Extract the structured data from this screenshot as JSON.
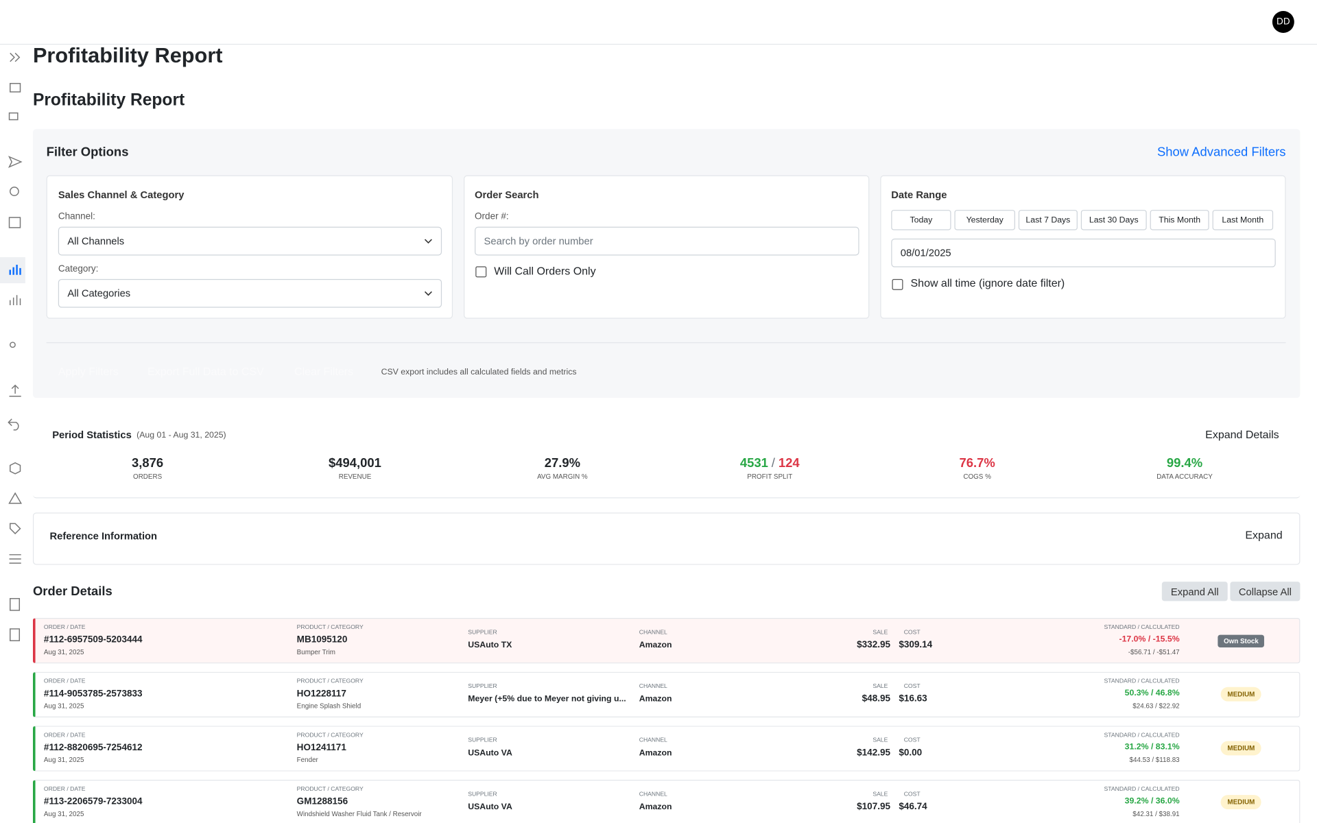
{
  "header": {
    "avatar": "DD"
  },
  "page_title": "Profitability Report",
  "section_title": "Profitability Report",
  "filters": {
    "title": "Filter Options",
    "advanced_link": "Show Advanced Filters",
    "sales_channel": {
      "title": "Sales Channel & Category",
      "channel_label": "Channel:",
      "channel_value": "All Channels",
      "category_label": "Category:",
      "category_value": "All Categories"
    },
    "order_search": {
      "title": "Order Search",
      "order_label": "Order #:",
      "placeholder": "Search by order number",
      "will_call": "Will Call Orders Only"
    },
    "date_range": {
      "title": "Date Range",
      "presets": [
        "Today",
        "Yesterday",
        "Last 7 Days",
        "Last 30 Days",
        "This Month",
        "Last Month"
      ],
      "date_value": "08/01/2025",
      "show_all": "Show all time (ignore date filter)"
    },
    "actions": {
      "buttons": [
        "Apply Filters",
        "Export Full Data to CSV",
        "Clear Filters"
      ],
      "note": "CSV export includes all calculated fields and metrics"
    }
  },
  "period_stats": {
    "title": "Period Statistics",
    "range": "(Aug 01 - Aug 31, 2025)",
    "expand": "Expand Details",
    "stats": [
      {
        "value": "3,876",
        "label": "ORDERS",
        "color": "#212529"
      },
      {
        "value": "$494,001",
        "label": "REVENUE",
        "color": "#212529"
      },
      {
        "value": "27.9%",
        "label": "AVG MARGIN %",
        "color": "#212529"
      },
      {
        "value": "4531",
        "separator": "/",
        "value2": "124",
        "label": "PROFIT SPLIT",
        "color": "#28a745",
        "color2": "#dc3545"
      },
      {
        "value": "76.7%",
        "label": "COGS %",
        "color": "#dc3545"
      },
      {
        "value": "99.4%",
        "label": "DATA ACCURACY",
        "color": "#28a745"
      }
    ]
  },
  "reference": {
    "title": "Reference Information",
    "expand": "Expand"
  },
  "orders": {
    "title": "Order Details",
    "expand_all": "Expand All",
    "collapse_all": "Collapse All",
    "field_labels": {
      "order": "ORDER / DATE",
      "product": "PRODUCT / CATEGORY",
      "supplier": "SUPPLIER",
      "channel": "CHANNEL",
      "sale": "SALE",
      "cost": "COST",
      "margin": "STANDARD / CALCULATED"
    },
    "rows": [
      {
        "order": "#112-6957509-5203444",
        "date": "Aug 31, 2025",
        "sku": "MB1095120",
        "category": "Bumper Trim",
        "supplier": "USAuto TX",
        "channel": "Amazon",
        "sale": "$332.95",
        "cost": "$309.14",
        "margin": "-17.0% / -15.5%",
        "profit": "-$56.71 / -$51.47",
        "badge": "Own Stock",
        "color": "#dc3545"
      },
      {
        "order": "#114-9053785-2573833",
        "date": "Aug 31, 2025",
        "sku": "HO1228117",
        "category": "Engine Splash Shield",
        "supplier": "Meyer (+5% due to Meyer not giving u...",
        "channel": "Amazon",
        "sale": "$48.95",
        "cost": "$16.63",
        "margin": "50.3% / 46.8%",
        "profit": "$24.63 / $22.92",
        "badge": "MEDIUM",
        "color": "#28a745"
      },
      {
        "order": "#112-8820695-7254612",
        "date": "Aug 31, 2025",
        "sku": "HO1241171",
        "category": "Fender",
        "supplier": "USAuto VA",
        "channel": "Amazon",
        "sale": "$142.95",
        "cost": "$0.00",
        "margin": "31.2% / 83.1%",
        "profit": "$44.53 / $118.83",
        "badge": "MEDIUM",
        "color": "#28a745"
      },
      {
        "order": "#113-2206579-7233004",
        "date": "Aug 31, 2025",
        "sku": "GM1288156",
        "category": "Windshield Washer Fluid Tank / Reservoir",
        "supplier": "USAuto VA",
        "channel": "Amazon",
        "sale": "$107.95",
        "cost": "$46.74",
        "margin": "39.2% / 36.0%",
        "profit": "$42.31 / $38.91",
        "badge": "MEDIUM",
        "color": "#28a745"
      }
    ]
  }
}
